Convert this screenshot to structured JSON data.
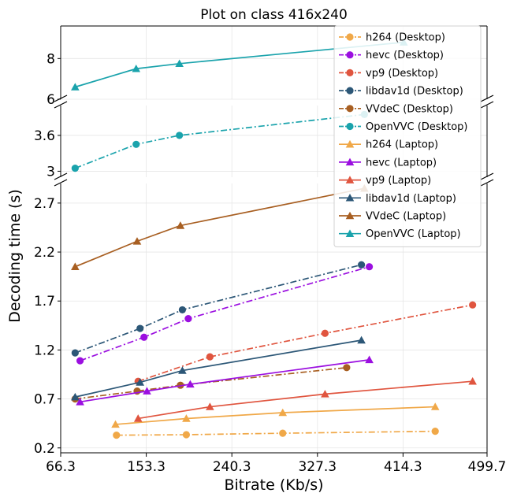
{
  "chart_data": {
    "type": "line",
    "title": "Plot on class 416x240",
    "xlabel": "Bitrate (Kb/s)",
    "ylabel": "Decoding time (s)",
    "xlim": [
      66.3,
      499.7
    ],
    "x_ticks": [
      "66.3",
      "153.3",
      "240.3",
      "327.3",
      "414.3",
      "499.7"
    ],
    "grid": true,
    "legend_position": "top-right",
    "panels": [
      {
        "ylim": [
          6.0,
          9.6
        ],
        "y_ticks": [
          "6",
          "8"
        ]
      },
      {
        "ylim": [
          2.9,
          4.1
        ],
        "y_ticks": [
          "3",
          "3.6"
        ]
      },
      {
        "ylim": [
          0.15,
          2.9
        ],
        "y_ticks": [
          "0.2",
          "0.7",
          "1.2",
          "1.7",
          "2.2",
          "2.7"
        ]
      }
    ],
    "series": [
      {
        "name": "h264 (Desktop)",
        "color": "#f0a848",
        "marker": "circle",
        "dash": "dashdot",
        "x": [
          123,
          194,
          292,
          447
        ],
        "y": [
          0.33,
          0.335,
          0.35,
          0.37
        ]
      },
      {
        "name": "hevc (Desktop)",
        "color": "#9b0fe0",
        "marker": "circle",
        "dash": "dashdot",
        "x": [
          86,
          151,
          196,
          380
        ],
        "y": [
          1.09,
          1.33,
          1.52,
          2.05
        ]
      },
      {
        "name": "vp9 (Desktop)",
        "color": "#e0553f",
        "marker": "circle",
        "dash": "dashdot",
        "x": [
          145,
          218,
          335,
          485
        ],
        "y": [
          0.88,
          1.13,
          1.37,
          1.66
        ]
      },
      {
        "name": "libdav1d (Desktop)",
        "color": "#2c5777",
        "marker": "circle",
        "dash": "dashdot",
        "x": [
          81,
          147,
          190,
          372
        ],
        "y": [
          1.17,
          1.42,
          1.61,
          2.07
        ]
      },
      {
        "name": "VVdeC (Desktop)",
        "color": "#a85f22",
        "marker": "circle",
        "dash": "dashdot",
        "x": [
          81,
          144,
          188,
          357
        ],
        "y": [
          0.7,
          0.78,
          0.84,
          1.02
        ]
      },
      {
        "name": "OpenVVC (Desktop)",
        "color": "#1aa3ac",
        "marker": "circle",
        "dash": "dashdot",
        "x": [
          81,
          143,
          187,
          375
        ],
        "y": [
          3.05,
          3.45,
          3.6,
          3.95
        ]
      },
      {
        "name": "h264 (Laptop)",
        "color": "#f0a848",
        "marker": "triangle",
        "dash": "solid",
        "x": [
          122,
          194,
          292,
          447
        ],
        "y": [
          0.44,
          0.5,
          0.56,
          0.62
        ]
      },
      {
        "name": "hevc (Laptop)",
        "color": "#9b0fe0",
        "marker": "triangle",
        "dash": "solid",
        "x": [
          86,
          154,
          198,
          380
        ],
        "y": [
          0.67,
          0.78,
          0.85,
          1.1
        ]
      },
      {
        "name": "vp9 (Laptop)",
        "color": "#e0553f",
        "marker": "triangle",
        "dash": "solid",
        "x": [
          145,
          218,
          335,
          485
        ],
        "y": [
          0.5,
          0.62,
          0.75,
          0.88
        ]
      },
      {
        "name": "libdav1d (Laptop)",
        "color": "#2c5777",
        "marker": "triangle",
        "dash": "solid",
        "x": [
          81,
          147,
          190,
          372
        ],
        "y": [
          0.72,
          0.87,
          0.99,
          1.3
        ]
      },
      {
        "name": "VVdeC (Laptop)",
        "color": "#a85f22",
        "marker": "triangle",
        "dash": "solid",
        "x": [
          81,
          144,
          188,
          375
        ],
        "y": [
          2.05,
          2.31,
          2.47,
          2.85
        ]
      },
      {
        "name": "OpenVVC (Laptop)",
        "color": "#1aa3ac",
        "marker": "triangle",
        "dash": "solid",
        "x": [
          81,
          143,
          187,
          415
        ],
        "y": [
          6.6,
          7.5,
          7.75,
          8.8
        ]
      }
    ]
  }
}
